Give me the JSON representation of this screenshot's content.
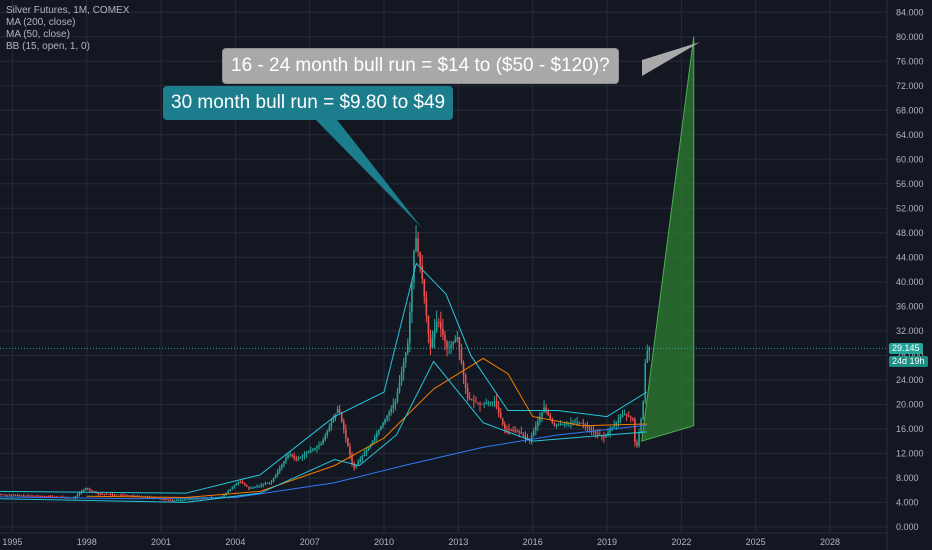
{
  "legend": {
    "title": "Silver Futures, 1M, COMEX",
    "ma200": "MA (200, close)",
    "ma50": "MA (50, close)",
    "bb": "BB (15, open, 1, 0)"
  },
  "annotations": {
    "projection": "16 - 24 month bull run = $14 to ($50 - $120)?",
    "historic": "30 month bull run = $9.80 to $49"
  },
  "price_badge": {
    "price": "29.145",
    "countdown": "24d 19h"
  },
  "colors": {
    "background": "#131722",
    "grid": "#262b38",
    "up": "#26a69a",
    "down": "#ef5350",
    "ma200": "#3179f5",
    "ma50": "#f57c00",
    "bb": "#26c6da",
    "projection_fill": "#2e7d32",
    "projection_line": "#4caf50",
    "price_line": "#26a69a",
    "callout_grey": "#a9a9a9",
    "callout_teal": "#1c7d8c"
  },
  "chart_data": {
    "type": "candlestick",
    "title": "Silver Futures, 1M, COMEX",
    "yticks": [
      "0.000",
      "4.000",
      "8.000",
      "12.000",
      "16.000",
      "20.000",
      "24.000",
      "28.000",
      "32.000",
      "36.000",
      "40.000",
      "44.000",
      "48.000",
      "52.000",
      "56.000",
      "60.000",
      "64.000",
      "68.000",
      "72.000",
      "76.000",
      "80.000",
      "84.000"
    ],
    "xticks": [
      "1995",
      "1998",
      "2001",
      "2004",
      "2007",
      "2010",
      "2013",
      "2016",
      "2019",
      "2022",
      "2025",
      "2028"
    ],
    "xlim": [
      1994.5,
      2030.3
    ],
    "ylim": [
      -1,
      86
    ],
    "current_price": 29.145,
    "close_path": [
      [
        1994.5,
        5.3
      ],
      [
        1995.5,
        5.1
      ],
      [
        1996.5,
        5.0
      ],
      [
        1997.5,
        4.7
      ],
      [
        1998.0,
        6.3
      ],
      [
        1998.5,
        5.4
      ],
      [
        1999.5,
        5.2
      ],
      [
        2000.5,
        4.9
      ],
      [
        2001.5,
        4.3
      ],
      [
        2002.5,
        4.6
      ],
      [
        2003.5,
        4.9
      ],
      [
        2004.2,
        7.5
      ],
      [
        2004.6,
        6.2
      ],
      [
        2005.5,
        7.4
      ],
      [
        2006.2,
        12.0
      ],
      [
        2006.5,
        11.0
      ],
      [
        2007.5,
        13.5
      ],
      [
        2008.2,
        19.5
      ],
      [
        2008.8,
        9.5
      ],
      [
        2009.5,
        13.5
      ],
      [
        2010.0,
        17.0
      ],
      [
        2010.5,
        20.5
      ],
      [
        2011.0,
        30.0
      ],
      [
        2011.3,
        48.0
      ],
      [
        2011.6,
        40.0
      ],
      [
        2011.9,
        29.0
      ],
      [
        2012.2,
        34.0
      ],
      [
        2012.6,
        29.0
      ],
      [
        2013.0,
        31.0
      ],
      [
        2013.4,
        21.0
      ],
      [
        2013.9,
        20.0
      ],
      [
        2014.5,
        20.5
      ],
      [
        2014.9,
        16.0
      ],
      [
        2015.5,
        15.5
      ],
      [
        2015.9,
        14.0
      ],
      [
        2016.5,
        19.5
      ],
      [
        2016.9,
        16.5
      ],
      [
        2017.5,
        17.0
      ],
      [
        2018.0,
        17.0
      ],
      [
        2018.5,
        15.5
      ],
      [
        2018.9,
        14.5
      ],
      [
        2019.5,
        17.5
      ],
      [
        2019.7,
        18.5
      ],
      [
        2020.1,
        17.5
      ],
      [
        2020.2,
        12.0
      ],
      [
        2020.4,
        17.0
      ],
      [
        2020.5,
        20.5
      ],
      [
        2020.6,
        28.0
      ],
      [
        2020.7,
        29.145
      ]
    ],
    "ma200": [
      [
        1994.5,
        4.9
      ],
      [
        2000.0,
        4.6
      ],
      [
        2004.0,
        4.8
      ],
      [
        2008.0,
        7.2
      ],
      [
        2011.0,
        10.2
      ],
      [
        2014.0,
        13.0
      ],
      [
        2017.0,
        15.0
      ],
      [
        2020.6,
        16.6
      ]
    ],
    "ma50": [
      [
        1998.0,
        5.0
      ],
      [
        2002.0,
        4.8
      ],
      [
        2005.0,
        5.8
      ],
      [
        2008.0,
        10.0
      ],
      [
        2010.0,
        14.5
      ],
      [
        2012.0,
        22.5
      ],
      [
        2014.0,
        27.5
      ],
      [
        2015.0,
        25.0
      ],
      [
        2016.0,
        18.0
      ],
      [
        2018.0,
        16.5
      ],
      [
        2020.6,
        16.8
      ]
    ],
    "bb_upper": [
      [
        1994.5,
        5.8
      ],
      [
        2002.0,
        5.5
      ],
      [
        2005.0,
        8.5
      ],
      [
        2008.0,
        18.0
      ],
      [
        2010.0,
        22.0
      ],
      [
        2011.3,
        43.0
      ],
      [
        2012.5,
        38.0
      ],
      [
        2013.5,
        28.0
      ],
      [
        2015.0,
        19.0
      ],
      [
        2017.0,
        19.0
      ],
      [
        2019.0,
        18.0
      ],
      [
        2020.6,
        22.0
      ]
    ],
    "bb_lower": [
      [
        1994.5,
        4.6
      ],
      [
        2002.0,
        4.0
      ],
      [
        2005.0,
        5.5
      ],
      [
        2008.0,
        11.0
      ],
      [
        2009.0,
        10.0
      ],
      [
        2010.5,
        15.0
      ],
      [
        2012.0,
        27.0
      ],
      [
        2014.0,
        17.0
      ],
      [
        2016.0,
        14.0
      ],
      [
        2019.0,
        15.0
      ],
      [
        2020.6,
        15.5
      ]
    ],
    "projection": [
      [
        2020.4,
        14.0
      ],
      [
        2022.5,
        80.0
      ],
      [
        2022.5,
        16.5
      ]
    ]
  }
}
